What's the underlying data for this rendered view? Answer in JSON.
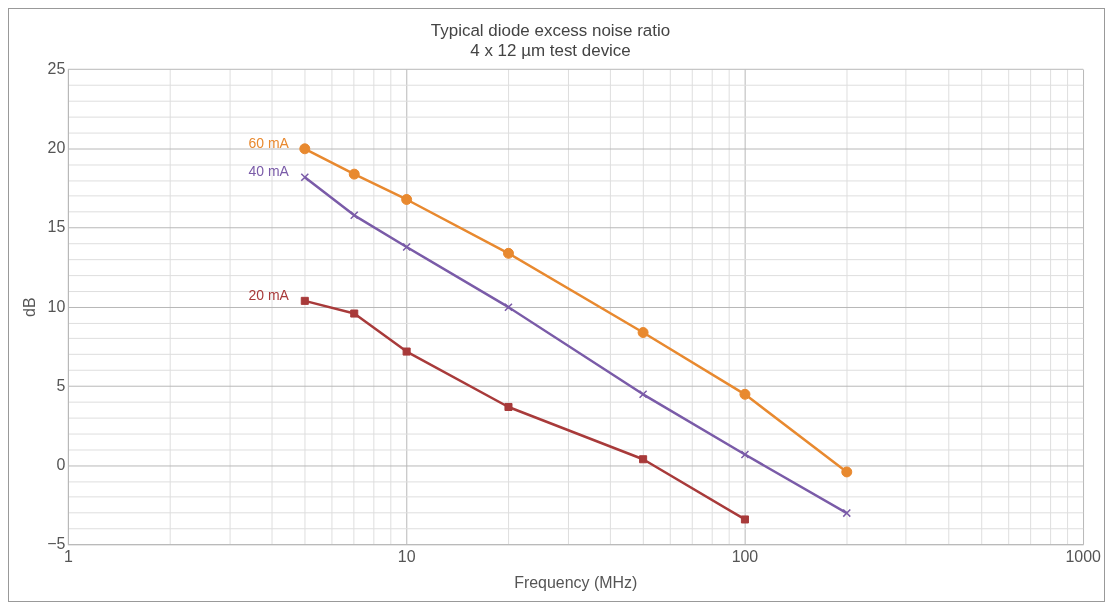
{
  "chart_data": {
    "type": "line",
    "title": "Typical diode excess noise ratio",
    "subtitle": "4 x 12 µm test device",
    "xlabel": "Frequency (MHz)",
    "ylabel": "dB",
    "log": "x",
    "grid": true,
    "line_style": "solid",
    "x": [
      5,
      7,
      10,
      20,
      50,
      100,
      200
    ],
    "series": [
      {
        "name": "60 mA",
        "color": "#e8892f",
        "marker": "circle",
        "values": [
          20.0,
          18.4,
          16.8,
          13.4,
          8.4,
          4.5,
          -0.4
        ]
      },
      {
        "name": "40 mA",
        "color": "#7a5ba8",
        "marker": "cross",
        "values": [
          18.2,
          15.8,
          13.8,
          10.0,
          4.5,
          0.7,
          -3.0
        ]
      },
      {
        "name": "20 mA",
        "color": "#a83a3a",
        "marker": "square",
        "values": [
          10.4,
          9.6,
          7.2,
          3.7,
          0.4,
          -3.4,
          null
        ]
      }
    ],
    "xlim": [
      1,
      1000
    ],
    "xticks": [
      1,
      {
        "value": 2,
        "label": null
      },
      {
        "value": 3,
        "label": null
      },
      {
        "value": 4,
        "label": null
      },
      {
        "value": 5,
        "label": null
      },
      {
        "value": 6,
        "label": null
      },
      {
        "value": 7,
        "label": null
      },
      {
        "value": 8,
        "label": null
      },
      {
        "value": 9,
        "label": null
      },
      10,
      {
        "value": 20,
        "label": null
      },
      {
        "value": 30,
        "label": null
      },
      {
        "value": 40,
        "label": null
      },
      {
        "value": 50,
        "label": null
      },
      {
        "value": 60,
        "label": null
      },
      {
        "value": 70,
        "label": null
      },
      {
        "value": 80,
        "label": null
      },
      {
        "value": 90,
        "label": null
      },
      100,
      {
        "value": 200,
        "label": null
      },
      {
        "value": 300,
        "label": null
      },
      {
        "value": 400,
        "label": null
      },
      {
        "value": 500,
        "label": null
      },
      {
        "value": 600,
        "label": null
      },
      {
        "value": 700,
        "label": null
      },
      {
        "value": 800,
        "label": null
      },
      {
        "value": 900,
        "label": null
      },
      1000
    ],
    "ylim": [
      -5,
      25
    ],
    "yticks": [
      {
        "value": -5,
        "label": "−5"
      },
      {
        "value": -4,
        "label": null
      },
      {
        "value": -3,
        "label": null
      },
      {
        "value": -2,
        "label": null
      },
      {
        "value": -1,
        "label": null
      },
      0,
      {
        "value": 1,
        "label": null
      },
      {
        "value": 2,
        "label": null
      },
      {
        "value": 3,
        "label": null
      },
      {
        "value": 4,
        "label": null
      },
      5,
      {
        "value": 6,
        "label": null
      },
      {
        "value": 7,
        "label": null
      },
      {
        "value": 8,
        "label": null
      },
      {
        "value": 9,
        "label": null
      },
      10,
      {
        "value": 11,
        "label": null
      },
      {
        "value": 12,
        "label": null
      },
      {
        "value": 13,
        "label": null
      },
      {
        "value": 14,
        "label": null
      },
      15,
      {
        "value": 16,
        "label": null
      },
      {
        "value": 17,
        "label": null
      },
      {
        "value": 18,
        "label": null
      },
      {
        "value": 19,
        "label": null
      },
      20,
      {
        "value": 21,
        "label": null
      },
      {
        "value": 22,
        "label": null
      },
      {
        "value": 23,
        "label": null
      },
      {
        "value": 24,
        "label": null
      },
      25
    ]
  }
}
